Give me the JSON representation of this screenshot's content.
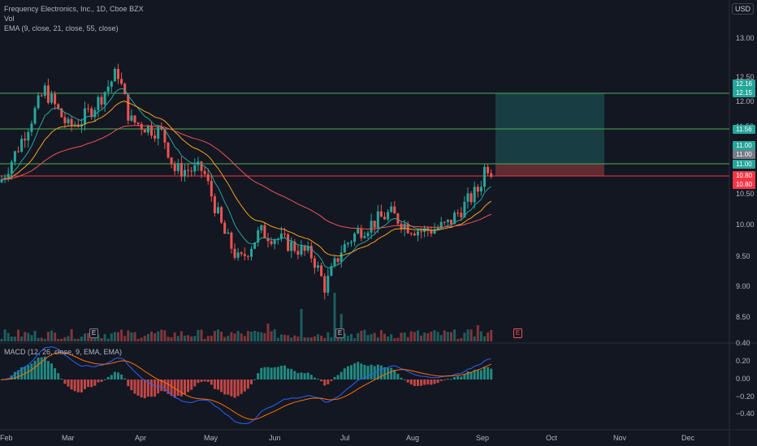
{
  "header": {
    "symbol_line": "Frequency Electronics, Inc., 1D, Cboe BZX",
    "vol_label": "Vol",
    "ema_label": "EMA (9, close, 21, close, 55, close)",
    "currency": "USD"
  },
  "price_axis": [
    "13.00",
    "12.50",
    "12.00",
    "11.50",
    "11.00",
    "10.50",
    "10.00",
    "9.50",
    "9.00",
    "8.50"
  ],
  "price_tags": [
    {
      "text": "12.16",
      "color": "#26a69a"
    },
    {
      "text": "12.15",
      "color": "#26a69a"
    },
    {
      "text": "11.56",
      "color": "#26a69a"
    },
    {
      "text": "11.00",
      "color": "#26a69a"
    },
    {
      "text": "11.00",
      "color": "#787b86"
    },
    {
      "text": "11.00",
      "color": "#26a69a"
    },
    {
      "text": "10.80",
      "color": "#f23645"
    },
    {
      "text": "10.80",
      "color": "#f23645"
    }
  ],
  "macd": {
    "label": "MACD (12, 26, close, 9, EMA, EMA)",
    "axis": [
      "0.40",
      "0.20",
      "0.00",
      "−0.20",
      "−0.40"
    ]
  },
  "time_axis": [
    "Feb",
    "Mar",
    "Apr",
    "May",
    "Jun",
    "Jul",
    "Aug",
    "Sep",
    "Oct",
    "Nov",
    "Dec"
  ],
  "earnings_markers": [
    "E",
    "E",
    "E"
  ],
  "colors": {
    "up": "#26a69a",
    "down": "#ef5350",
    "ema9": "#26a69a",
    "ema21": "#f7a21b",
    "ema55": "#ef5350",
    "macd": "#2962ff",
    "signal": "#ff6d00"
  }
}
